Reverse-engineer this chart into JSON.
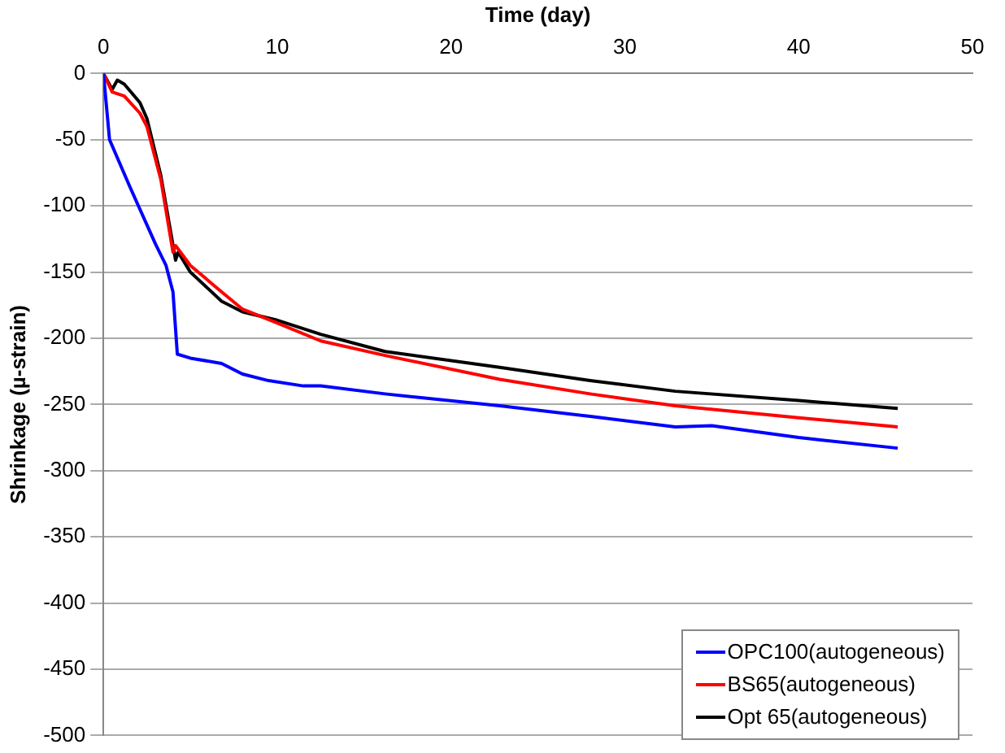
{
  "chart_data": {
    "type": "line",
    "xlabel": "Time (day)",
    "ylabel": "Shrinkage (µ-strain)",
    "xlim": [
      0,
      50
    ],
    "xticks": [
      0,
      10,
      20,
      30,
      40,
      50
    ],
    "ylim": [
      -500,
      0
    ],
    "yticks": [
      0,
      -50,
      -100,
      -150,
      -200,
      -250,
      -300,
      -350,
      -400,
      -450,
      -500
    ],
    "grid": "y",
    "legend": "bottom right",
    "marker": "none",
    "line_style": "solid",
    "series": [
      {
        "name": "OPC100(autogeneous)",
        "color": "#0000ff",
        "x": [
          0,
          0.35,
          1.5,
          3.0,
          3.6,
          4.0,
          4.25,
          5.0,
          6.8,
          8.0,
          9.5,
          11.5,
          12.5,
          16.2,
          22.8,
          28,
          32.9,
          35,
          40,
          45.7
        ],
        "values": [
          0,
          -50,
          -85,
          -129,
          -145,
          -165,
          -212,
          -215,
          -219,
          -227,
          -232,
          -236,
          -236,
          -242,
          -251,
          -259,
          -267,
          -266,
          -275,
          -283
        ]
      },
      {
        "name": "BS65(autogeneous)",
        "color": "#ff0000",
        "x": [
          0,
          0.5,
          1.2,
          2.1,
          2.5,
          3.3,
          4.0,
          4.15,
          5.0,
          6.8,
          8.0,
          9.9,
          12.5,
          16.2,
          22.8,
          28,
          32.9,
          40,
          45.7
        ],
        "values": [
          0,
          -14,
          -17,
          -30,
          -40,
          -80,
          -135,
          -130,
          -145,
          -165,
          -178,
          -188,
          -202,
          -213,
          -231,
          -242,
          -251,
          -260,
          -267
        ]
      },
      {
        "name": "Opt 65(autogeneous)",
        "color": "#000000",
        "x": [
          0,
          0.5,
          0.8,
          1.2,
          2.1,
          2.5,
          3.3,
          4.15,
          4.3,
          5.0,
          6.8,
          8.0,
          9.9,
          12.5,
          16.2,
          22.8,
          28,
          32.9,
          40,
          45.7
        ],
        "values": [
          0,
          -12,
          -5,
          -8,
          -22,
          -34,
          -77,
          -141,
          -135,
          -150,
          -172,
          -180,
          -186,
          -197,
          -210,
          -222,
          -232,
          -240,
          -247,
          -253
        ]
      }
    ]
  }
}
